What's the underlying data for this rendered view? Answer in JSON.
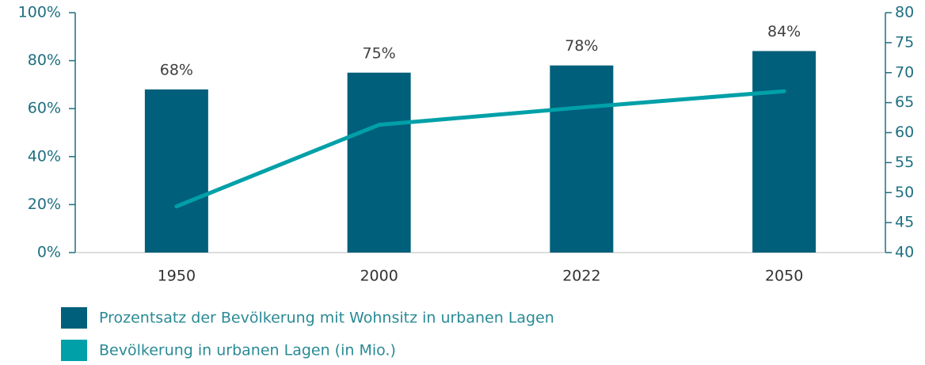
{
  "chart_data": {
    "type": "bar",
    "categories": [
      "1950",
      "2000",
      "2022",
      "2050"
    ],
    "series": [
      {
        "name": "Prozentsatz der Bevölkerung mit Wohnsitz in urbanen Lagen",
        "type": "bar",
        "color": "#005f7a",
        "values": [
          68,
          75,
          78,
          84
        ],
        "value_labels": [
          "68%",
          "75%",
          "78%",
          "84%"
        ]
      },
      {
        "name": "Bevölkerung in urbanen Lagen (in Mio.)",
        "type": "line",
        "axis": "y2",
        "color": "#00a0a8",
        "values": [
          47.7,
          61.3,
          64.2,
          66.9
        ]
      }
    ],
    "ylim": [
      0,
      100
    ],
    "yticks": [
      {
        "value": 0,
        "label": "0%"
      },
      {
        "value": 20,
        "label": "20%"
      },
      {
        "value": 40,
        "label": "40%"
      },
      {
        "value": 60,
        "label": "60%"
      },
      {
        "value": 80,
        "label": "80%"
      },
      {
        "value": 100,
        "label": "100%"
      }
    ],
    "y2lim": [
      40,
      80
    ],
    "y2ticks": [
      40,
      45,
      50,
      55,
      60,
      65,
      70,
      75,
      80
    ],
    "legend": "bottom-left"
  }
}
